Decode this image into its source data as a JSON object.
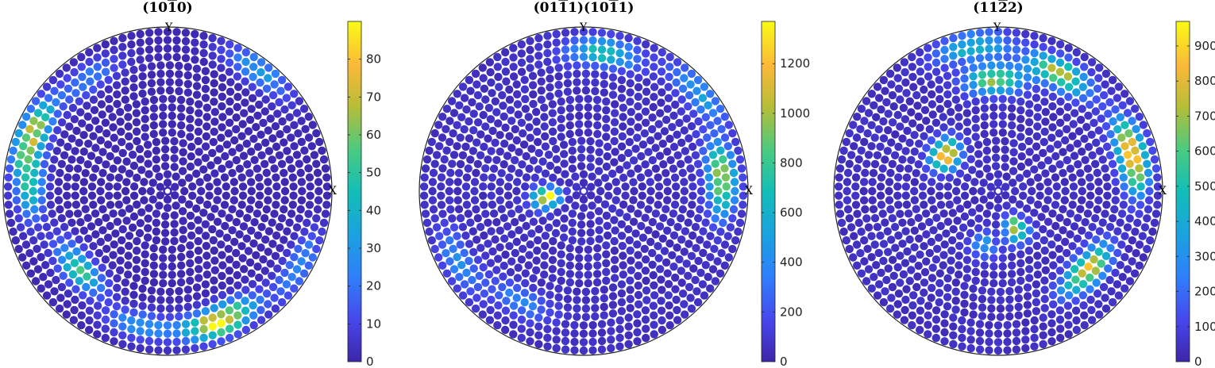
{
  "chart_data": [
    {
      "type": "scatter",
      "subtype": "pole-figure",
      "title": "(10̅0)",
      "title_parts": [
        "(10",
        "1",
        "0)"
      ],
      "overline_index": 1,
      "axis_labels": {
        "x": "X",
        "y": "Y"
      },
      "colorbar": {
        "min": 0,
        "max": 90,
        "ticks": [
          0,
          10,
          20,
          30,
          40,
          50,
          60,
          70,
          80
        ]
      },
      "colormap": "parula",
      "background_value": 1.5,
      "peaks": [
        {
          "azimuth_deg": 158,
          "radius": 0.92,
          "value": 70
        },
        {
          "azimuth_deg": 178,
          "radius": 0.86,
          "value": 40
        },
        {
          "azimuth_deg": 221,
          "radius": 0.74,
          "value": 52
        },
        {
          "azimuth_deg": 292,
          "radius": 0.88,
          "value": 88
        },
        {
          "azimuth_deg": 125,
          "radius": 0.86,
          "value": 22
        },
        {
          "azimuth_deg": 53,
          "radius": 0.95,
          "value": 30
        },
        {
          "azimuth_deg": 258,
          "radius": 0.86,
          "value": 28
        },
        {
          "azimuth_deg": 330,
          "radius": 0.95,
          "value": 25
        }
      ]
    },
    {
      "type": "scatter",
      "subtype": "pole-figure",
      "title": "(011̅1̅)(101̅1̅)",
      "title_parts": [
        "(01",
        "1",
        "1)(10",
        "1",
        "1)"
      ],
      "overline_index": [
        1,
        3
      ],
      "axis_labels": {
        "x": "X",
        "y": "Y"
      },
      "colorbar": {
        "min": 0,
        "max": 1370,
        "ticks": [
          0,
          200,
          400,
          600,
          800,
          1000,
          1200
        ]
      },
      "colormap": "parula",
      "background_value": 60,
      "peaks": [
        {
          "azimuth_deg": 190,
          "radius": 0.23,
          "value": 1250
        },
        {
          "azimuth_deg": 5,
          "radius": 0.87,
          "value": 1000
        },
        {
          "azimuth_deg": 82,
          "radius": 0.88,
          "value": 650
        },
        {
          "azimuth_deg": 40,
          "radius": 0.95,
          "value": 420
        },
        {
          "azimuth_deg": 210,
          "radius": 0.9,
          "value": 350
        },
        {
          "azimuth_deg": 240,
          "radius": 0.8,
          "value": 320
        }
      ]
    },
    {
      "type": "scatter",
      "subtype": "pole-figure",
      "title": "(112̅2)",
      "title_parts": [
        "(11",
        "2",
        "2)"
      ],
      "overline_index": 1,
      "axis_labels": {
        "x": "X",
        "y": "Y"
      },
      "colorbar": {
        "min": 0,
        "max": 970,
        "ticks": [
          0,
          100,
          200,
          300,
          400,
          500,
          600,
          700,
          800,
          900
        ]
      },
      "colormap": "parula",
      "background_value": 40,
      "peaks": [
        {
          "azimuth_deg": 145,
          "radius": 0.4,
          "value": 850
        },
        {
          "azimuth_deg": 15,
          "radius": 0.87,
          "value": 950
        },
        {
          "azimuth_deg": 318,
          "radius": 0.75,
          "value": 780
        },
        {
          "azimuth_deg": 295,
          "radius": 0.26,
          "value": 720
        },
        {
          "azimuth_deg": 92,
          "radius": 0.7,
          "value": 620
        },
        {
          "azimuth_deg": 63,
          "radius": 0.83,
          "value": 700
        },
        {
          "azimuth_deg": 100,
          "radius": 0.92,
          "value": 420
        },
        {
          "azimuth_deg": 255,
          "radius": 0.35,
          "value": 280
        }
      ]
    }
  ]
}
